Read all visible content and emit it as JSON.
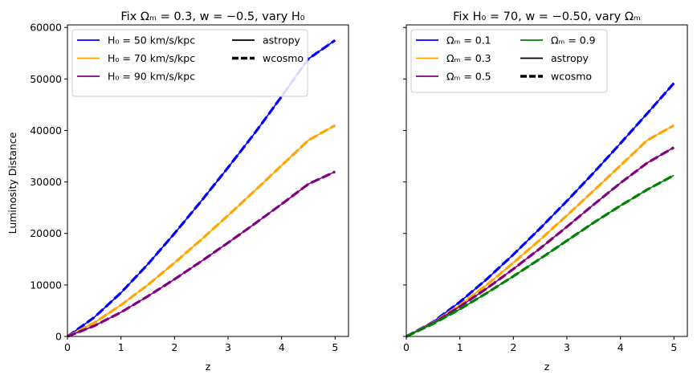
{
  "chart_data": [
    {
      "type": "line",
      "title": "Fix Ωₘ = 0.3, w = −0.5, vary H₀",
      "xlabel": "z",
      "ylabel": "Luminosity Distance",
      "xlim": [
        0,
        5.25
      ],
      "ylim": [
        0,
        60500
      ],
      "xticks": [
        "0",
        "1",
        "2",
        "3",
        "4",
        "5"
      ],
      "yticks": [
        "0",
        "10000",
        "20000",
        "30000",
        "40000",
        "50000",
        "60000"
      ],
      "grid": false,
      "legend_placement": "top-left",
      "legend": {
        "columns": 2,
        "entries": [
          {
            "label": "H₀ = 50 km/s/kpc",
            "color": "#0000ff",
            "style": "solid"
          },
          {
            "label": "astropy",
            "color": "#000000",
            "style": "solid"
          },
          {
            "label": "H₀ = 70 km/s/kpc",
            "color": "#ffa500",
            "style": "solid"
          },
          {
            "label": "wcosmo",
            "color": "#000000",
            "style": "dashed"
          },
          {
            "label": "H₀ = 90 km/s/kpc",
            "color": "#800080",
            "style": "solid"
          }
        ]
      },
      "x": [
        0,
        0.5,
        1,
        1.5,
        2,
        2.5,
        3,
        3.5,
        4,
        4.5,
        5
      ],
      "series": [
        {
          "name": "H₀ = 50 km/s/kpc",
          "color": "#0000ff",
          "values": [
            0,
            3700,
            8500,
            14000,
            20000,
            26300,
            32800,
            39500,
            46600,
            53900,
            57500
          ]
        },
        {
          "name": "H₀ = 70 km/s/kpc",
          "color": "#ffa500",
          "values": [
            0,
            2650,
            6100,
            10000,
            14300,
            18800,
            23500,
            28300,
            33200,
            38100,
            41000
          ]
        },
        {
          "name": "H₀ = 90 km/s/kpc",
          "color": "#800080",
          "values": [
            0,
            2050,
            4700,
            7800,
            11100,
            14600,
            18200,
            21900,
            25700,
            29600,
            32000
          ]
        }
      ]
    },
    {
      "type": "line",
      "title": "Fix H₀ = 70, w = −0.50, vary Ωₘ",
      "xlabel": "z",
      "ylabel": "",
      "xlim": [
        0,
        5.25
      ],
      "ylim": [
        0,
        60500
      ],
      "xticks": [
        "0",
        "1",
        "2",
        "3",
        "4",
        "5"
      ],
      "grid": false,
      "legend_placement": "top-left",
      "legend": {
        "columns": 2,
        "entries": [
          {
            "label": "Ωₘ = 0.1",
            "color": "#0000ff",
            "style": "solid"
          },
          {
            "label": "Ωₘ = 0.9",
            "color": "#008000",
            "style": "solid"
          },
          {
            "label": "Ωₘ = 0.3",
            "color": "#ffa500",
            "style": "solid"
          },
          {
            "label": "astropy",
            "color": "#000000",
            "style": "solid"
          },
          {
            "label": "Ωₘ = 0.5",
            "color": "#800080",
            "style": "solid"
          },
          {
            "label": "wcosmo",
            "color": "#000000",
            "style": "dashed"
          }
        ]
      },
      "x": [
        0,
        0.5,
        1,
        1.5,
        2,
        2.5,
        3,
        3.5,
        4,
        4.5,
        5
      ],
      "series": [
        {
          "name": "Ωₘ = 0.1",
          "color": "#0000ff",
          "values": [
            0,
            2800,
            6700,
            11100,
            15900,
            21000,
            26300,
            31800,
            37500,
            43300,
            49200
          ]
        },
        {
          "name": "Ωₘ = 0.3",
          "color": "#ffa500",
          "values": [
            0,
            2650,
            6100,
            10000,
            14300,
            18800,
            23500,
            28300,
            33200,
            38100,
            41000
          ]
        },
        {
          "name": "Ωₘ = 0.5",
          "color": "#800080",
          "values": [
            0,
            2550,
            5800,
            9300,
            13100,
            17100,
            21300,
            25600,
            29800,
            33700,
            36700
          ]
        },
        {
          "name": "Ωₘ = 0.9",
          "color": "#008000",
          "values": [
            0,
            2450,
            5300,
            8400,
            11700,
            15100,
            18600,
            22100,
            25400,
            28500,
            31300
          ]
        }
      ]
    }
  ]
}
